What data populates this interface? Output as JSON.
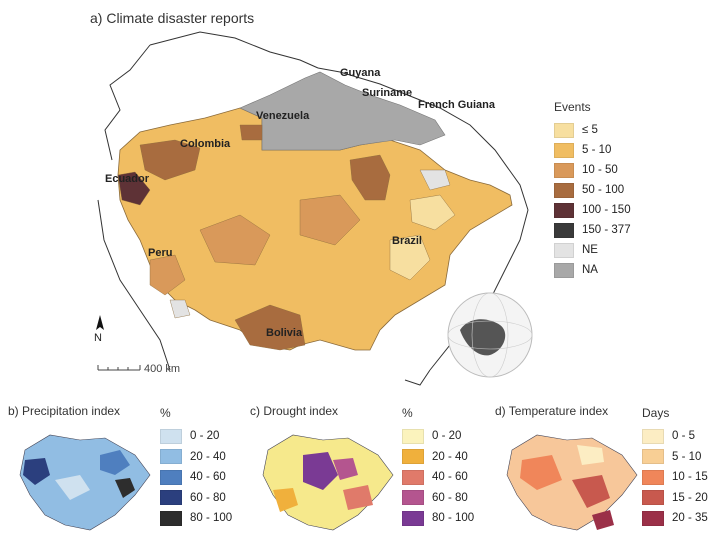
{
  "main": {
    "title": "a) Climate disaster reports",
    "country_labels": {
      "guyana": "Guyana",
      "suriname": "Suriname",
      "french_guiana": "French Guiana",
      "venezuela": "Venezuela",
      "colombia": "Colombia",
      "ecuador": "Ecuador",
      "peru": "Peru",
      "brazil": "Brazil",
      "bolivia": "Bolivia"
    },
    "north_label": "N",
    "scale_label": "400 km",
    "legend": {
      "title": "Events",
      "items": [
        {
          "label": "≤ 5",
          "color": "#f7dfa0"
        },
        {
          "label": "5 - 10",
          "color": "#f0bd62"
        },
        {
          "label": "10 - 50",
          "color": "#d9995a"
        },
        {
          "label": "50 - 100",
          "color": "#a86c3f"
        },
        {
          "label": "100 - 150",
          "color": "#5e3236"
        },
        {
          "label": "150 - 377",
          "color": "#3a3a3a"
        },
        {
          "label": "NE",
          "color": "#e3e3e3"
        },
        {
          "label": "NA",
          "color": "#a8a8a8"
        }
      ]
    }
  },
  "panels": [
    {
      "title": "b) Precipitation index",
      "unit": "%",
      "base_color": "#a9c8e6",
      "items": [
        {
          "label": "0 - 20",
          "color": "#cfe1ef"
        },
        {
          "label": "20 - 40",
          "color": "#91bde3"
        },
        {
          "label": "40 - 60",
          "color": "#4f7fbf"
        },
        {
          "label": "60 - 80",
          "color": "#2b3f7e"
        },
        {
          "label": "80 - 100",
          "color": "#2d2d2d"
        }
      ]
    },
    {
      "title": "c) Drought index",
      "unit": "%",
      "base_color": "#f6e98c",
      "items": [
        {
          "label": "0 - 20",
          "color": "#fbf3bd"
        },
        {
          "label": "20 - 40",
          "color": "#f0b03c"
        },
        {
          "label": "40 - 60",
          "color": "#e07a6a"
        },
        {
          "label": "60 - 80",
          "color": "#b4558f"
        },
        {
          "label": "80 - 100",
          "color": "#7a3a94"
        }
      ]
    },
    {
      "title": "d) Temperature index",
      "unit": "Days",
      "base_color": "#f7c79a",
      "items": [
        {
          "label": "0 - 5",
          "color": "#fcedc3"
        },
        {
          "label": "5 - 10",
          "color": "#f8cf95"
        },
        {
          "label": "10 - 15",
          "color": "#f0865a"
        },
        {
          "label": "15 - 20",
          "color": "#c8594e"
        },
        {
          "label": "20 - 35",
          "color": "#9b3048"
        }
      ]
    }
  ]
}
